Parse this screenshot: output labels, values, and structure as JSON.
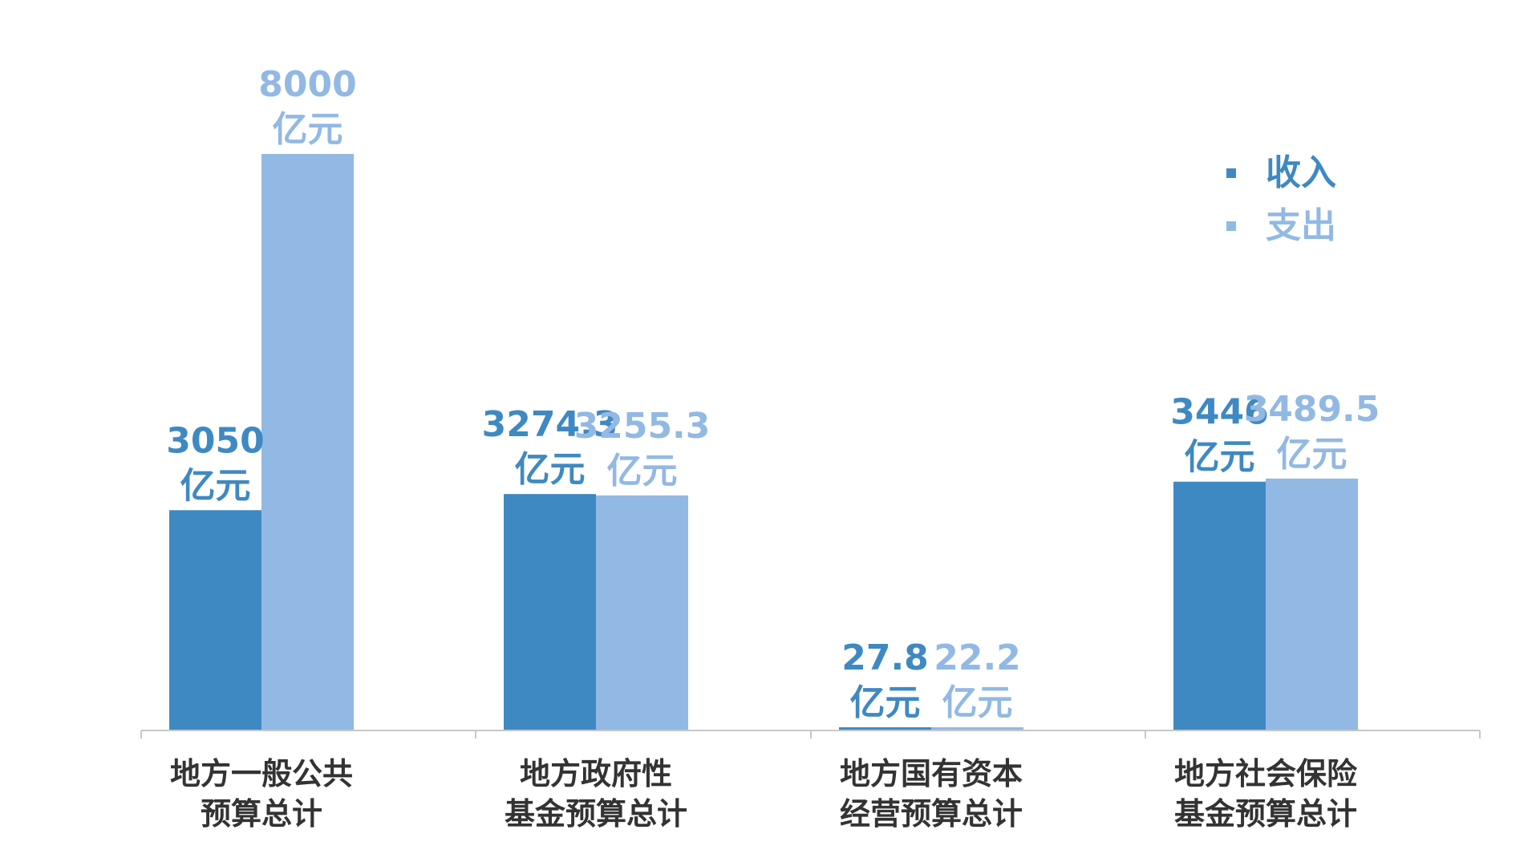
{
  "chart_data": {
    "type": "bar",
    "title": "",
    "xlabel": "",
    "ylabel": "",
    "ylim": [
      0,
      8000
    ],
    "grid": false,
    "legend_position": "top-right",
    "categories": [
      [
        "地方一般公共",
        "预算总计"
      ],
      [
        "地方政府性",
        "基金预算总计"
      ],
      [
        "地方国有资本",
        "经营预算总计"
      ],
      [
        "地方社会保险",
        "基金预算总计"
      ]
    ],
    "series": [
      {
        "name": "收入",
        "color": "#3f89c2",
        "values": [
          3050,
          3274.3,
          27.8,
          3446
        ],
        "labels": [
          [
            "3050",
            "亿元"
          ],
          [
            "3274.3",
            "亿元"
          ],
          [
            "27.8",
            "亿元"
          ],
          [
            "3446",
            "亿元"
          ]
        ]
      },
      {
        "name": "支出",
        "color": "#92b9e3",
        "values": [
          8000,
          3255.3,
          22.2,
          3489.5
        ],
        "labels": [
          [
            "8000",
            "亿元"
          ],
          [
            "3255.3",
            "亿元"
          ],
          [
            "22.2",
            "亿元"
          ],
          [
            "3489.5",
            "亿元"
          ]
        ]
      }
    ],
    "axis_color": "#c8c8c8",
    "category_label_color": "#333333"
  }
}
